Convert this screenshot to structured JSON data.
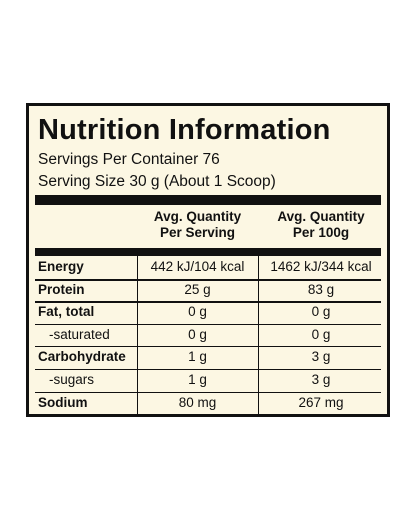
{
  "header": {
    "title": "Nutrition Information",
    "servings_per_container": "Servings Per Container 76",
    "serving_size": "Serving Size 30 g (About 1 Scoop)"
  },
  "table": {
    "columns": [
      [
        "Avg. Quantity",
        "Per Serving"
      ],
      [
        "Avg. Quantity",
        "Per 100g"
      ]
    ],
    "rows": [
      [
        "Energy",
        "442 kJ/104 kcal",
        "1462 kJ/344 kcal"
      ],
      [
        "Protein",
        "25 g",
        "83 g"
      ],
      [
        "Fat, total",
        "0 g",
        "0 g"
      ],
      [
        "-saturated",
        "0 g",
        "0 g"
      ],
      [
        "Carbohydrate",
        "1 g",
        "3 g"
      ],
      [
        "-sugars",
        "1 g",
        "3 g"
      ],
      [
        "Sodium",
        "80 mg",
        "267 mg"
      ]
    ]
  }
}
